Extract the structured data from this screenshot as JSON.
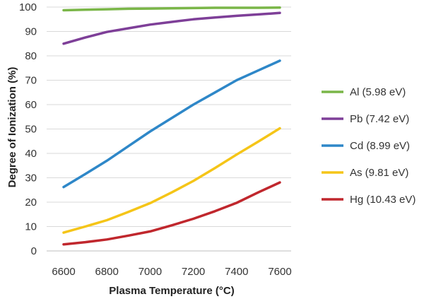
{
  "chart_data": {
    "type": "line",
    "title": "",
    "xlabel": "Plasma Temperature (°C)",
    "ylabel": "Degree of Ionization (%)",
    "xlim": [
      6600,
      7600
    ],
    "ylim": [
      0,
      100
    ],
    "xticks": [
      6600,
      6800,
      7000,
      7200,
      7400,
      7600
    ],
    "yticks": [
      0,
      10,
      20,
      30,
      40,
      50,
      60,
      70,
      80,
      90,
      100
    ],
    "grid": "horizontal",
    "legend_position": "right",
    "x": [
      6600,
      6700,
      6800,
      6900,
      7000,
      7100,
      7200,
      7300,
      7400,
      7500,
      7600
    ],
    "series": [
      {
        "name": "Al (5.98 eV)",
        "color": "#7ab648",
        "values": [
          98.7,
          98.9,
          99.1,
          99.3,
          99.4,
          99.5,
          99.6,
          99.7,
          99.7,
          99.7,
          99.8
        ]
      },
      {
        "name": "Pb (7.42 eV)",
        "color": "#7e3f98",
        "values": [
          85,
          87.5,
          89.8,
          91.3,
          92.8,
          93.9,
          95,
          95.7,
          96.4,
          97,
          97.6
        ]
      },
      {
        "name": "Cd (8.99 eV)",
        "color": "#2e87c8",
        "values": [
          26.2,
          31.5,
          37,
          43,
          49,
          54.5,
          60,
          65,
          70,
          74,
          78
        ]
      },
      {
        "name": "As (9.81 eV)",
        "color": "#f5c518",
        "values": [
          7.5,
          10,
          12.6,
          16,
          19.6,
          24,
          28.7,
          34,
          39.5,
          44.8,
          50.3
        ]
      },
      {
        "name": "Hg (10.43 eV)",
        "color": "#c0272d",
        "values": [
          2.7,
          3.6,
          4.7,
          6.3,
          8,
          10.5,
          13.2,
          16.3,
          19.7,
          24,
          28.1
        ]
      }
    ]
  }
}
